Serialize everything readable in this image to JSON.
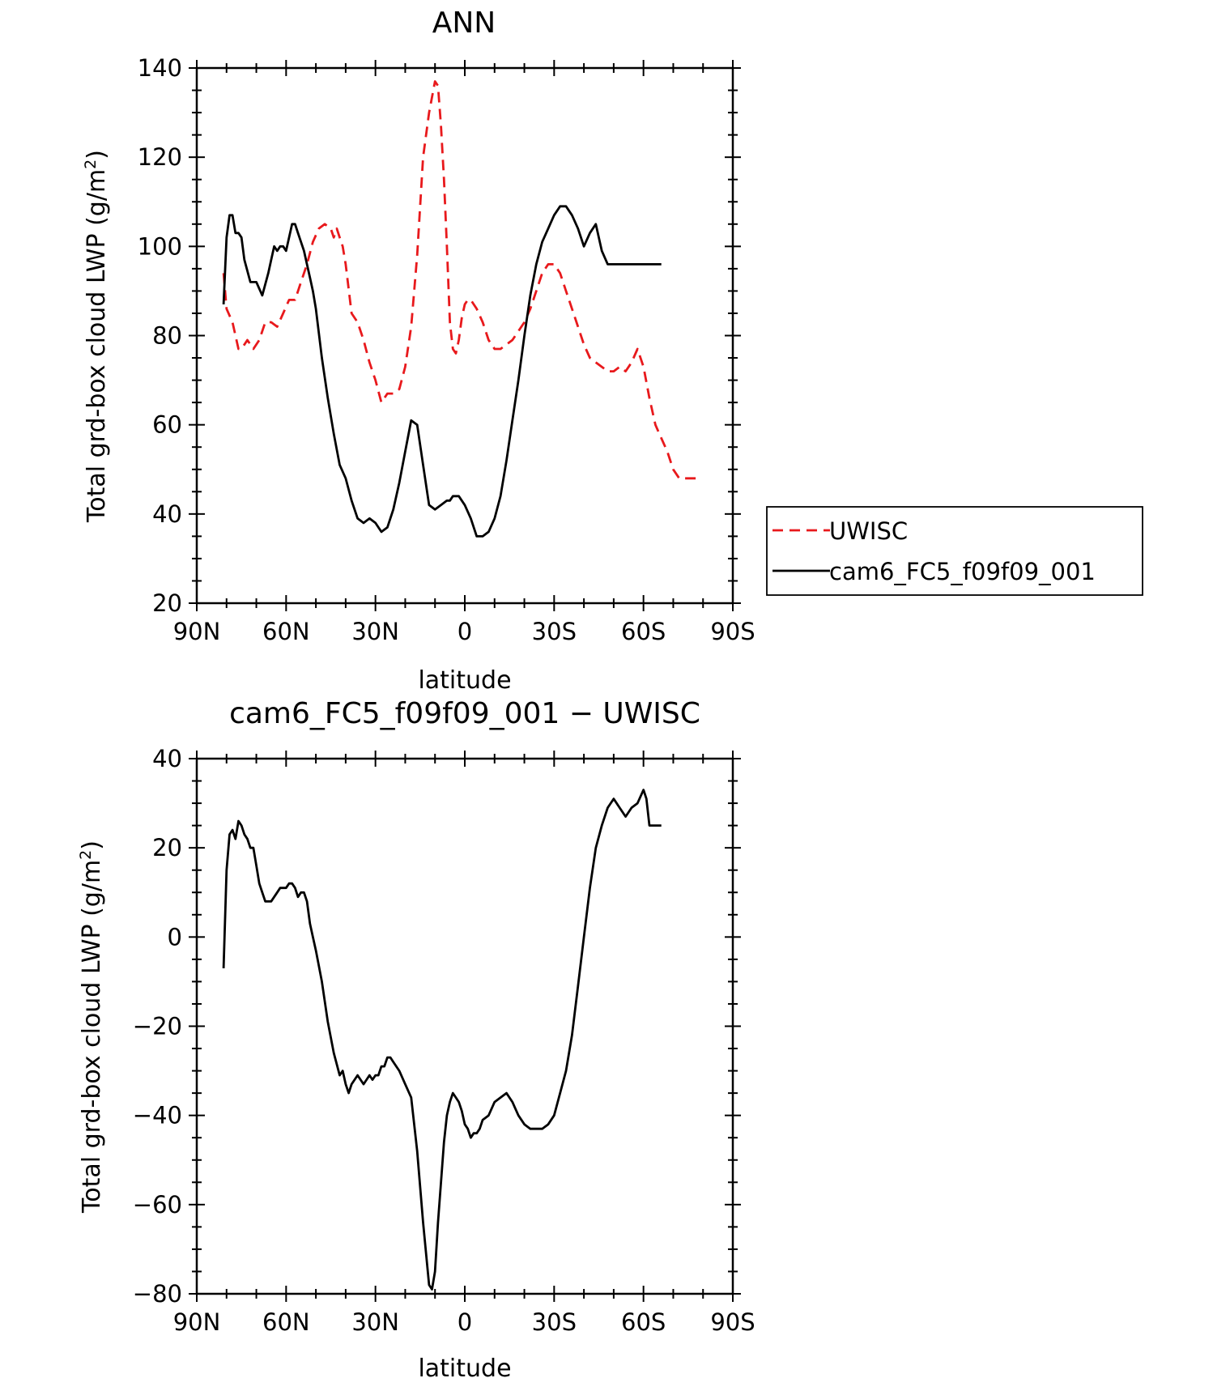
{
  "colors": {
    "uwisc": "#e8191c",
    "model": "#000000",
    "axes": "#000000"
  },
  "chart_data": [
    {
      "type": "line",
      "title": "ANN",
      "xlabel": "latitude",
      "ylabel": "Total grd-box cloud LWP (g/m²)",
      "ylabel_main": "Total grd-box cloud LWP (g/m",
      "ylabel_sup": "2",
      "ylabel_end": ")",
      "xlim": [
        90,
        -90
      ],
      "ylim": [
        20,
        140
      ],
      "x_ticks": [
        {
          "value": 90,
          "label": "90N"
        },
        {
          "value": 60,
          "label": "60N"
        },
        {
          "value": 30,
          "label": "30N"
        },
        {
          "value": 0,
          "label": "0"
        },
        {
          "value": -30,
          "label": "30S"
        },
        {
          "value": -60,
          "label": "60S"
        },
        {
          "value": -90,
          "label": "90S"
        }
      ],
      "y_ticks": [
        20,
        40,
        60,
        80,
        100,
        120,
        140
      ],
      "legend": {
        "position": "right",
        "entries": [
          "UWISC",
          "cam6_FC5_f09f09_001"
        ]
      },
      "series": [
        {
          "name": "UWISC",
          "style": "dashed",
          "color": "#e8191c",
          "x": [
            81,
            80,
            78,
            76,
            75,
            73,
            71,
            69,
            67,
            65,
            63,
            61,
            59,
            57,
            55,
            53,
            51,
            49,
            47,
            45,
            44,
            43,
            42,
            41,
            40,
            38,
            36,
            34,
            32,
            30,
            28,
            26,
            24,
            22,
            20,
            18,
            16,
            14,
            12,
            10,
            9,
            8,
            7,
            6,
            5,
            4,
            3,
            2,
            1,
            0,
            -1,
            -2,
            -4,
            -6,
            -8,
            -10,
            -12,
            -14,
            -16,
            -18,
            -20,
            -22,
            -24,
            -26,
            -28,
            -30,
            -32,
            -34,
            -36,
            -38,
            -40,
            -42,
            -44,
            -46,
            -48,
            -50,
            -52,
            -54,
            -56,
            -58,
            -60,
            -62,
            -64,
            -66,
            -68,
            -70,
            -72,
            -73,
            -74,
            -75,
            -76,
            -77,
            -78
          ],
          "y": [
            94,
            86,
            83,
            77,
            77,
            79,
            77,
            79,
            83,
            83,
            82,
            85,
            88,
            88,
            92,
            96,
            101,
            104,
            105,
            104,
            102,
            104,
            102,
            100,
            96,
            85,
            83,
            79,
            74,
            70,
            65,
            67,
            67,
            68,
            73,
            82,
            98,
            120,
            130,
            137,
            136,
            127,
            115,
            100,
            83,
            77,
            76,
            79,
            84,
            87,
            88,
            88,
            86,
            83,
            79,
            77,
            77,
            78,
            79,
            81,
            83,
            86,
            90,
            94,
            96,
            96,
            94,
            90,
            86,
            82,
            78,
            75,
            74,
            73,
            72,
            72,
            73,
            72,
            74,
            77,
            73,
            66,
            60,
            57,
            54,
            50,
            48,
            48,
            48,
            48,
            48,
            48,
            48
          ]
        },
        {
          "name": "cam6_FC5_f09f09_001",
          "style": "solid",
          "color": "#000000",
          "x": [
            81,
            80,
            79,
            78,
            77,
            76,
            75,
            74,
            72,
            70,
            68,
            66,
            65,
            64,
            63,
            62,
            61,
            60,
            59,
            58,
            57,
            56,
            55,
            54,
            53,
            52,
            51,
            50,
            48,
            46,
            44,
            42,
            40,
            38,
            36,
            34,
            32,
            30,
            28,
            26,
            24,
            22,
            20,
            18,
            16,
            14,
            12,
            10,
            8,
            6,
            5,
            4,
            3,
            2,
            1,
            0,
            -2,
            -4,
            -6,
            -8,
            -10,
            -12,
            -14,
            -16,
            -18,
            -20,
            -22,
            -24,
            -26,
            -28,
            -30,
            -32,
            -34,
            -36,
            -38,
            -40,
            -42,
            -44,
            -46,
            -48,
            -50,
            -52,
            -54,
            -56,
            -58,
            -60,
            -61,
            -62,
            -63,
            -64,
            -65,
            -66
          ],
          "y": [
            87,
            102,
            107,
            107,
            103,
            103,
            102,
            97,
            92,
            92,
            89,
            94,
            97,
            100,
            99,
            100,
            100,
            99,
            102,
            105,
            105,
            103,
            101,
            99,
            96,
            93,
            90,
            86,
            75,
            66,
            58,
            51,
            48,
            43,
            39,
            38,
            39,
            38,
            36,
            37,
            41,
            47,
            54,
            61,
            60,
            51,
            42,
            41,
            42,
            43,
            43,
            44,
            44,
            44,
            43,
            42,
            39,
            35,
            35,
            36,
            39,
            44,
            52,
            61,
            70,
            80,
            89,
            96,
            101,
            104,
            107,
            109,
            109,
            107,
            104,
            100,
            103,
            105,
            99,
            96,
            96,
            96,
            96,
            96,
            96,
            96,
            96,
            96,
            96,
            96,
            96,
            96
          ]
        }
      ]
    },
    {
      "type": "line",
      "title": "cam6_FC5_f09f09_001 − UWISC",
      "xlabel": "latitude",
      "ylabel": "Total grd-box cloud LWP (g/m²)",
      "ylabel_main": "Total grd-box cloud LWP (g/m",
      "ylabel_sup": "2",
      "ylabel_end": ")",
      "xlim": [
        90,
        -90
      ],
      "ylim": [
        -80,
        40
      ],
      "x_ticks": [
        {
          "value": 90,
          "label": "90N"
        },
        {
          "value": 60,
          "label": "60N"
        },
        {
          "value": 30,
          "label": "30N"
        },
        {
          "value": 0,
          "label": "0"
        },
        {
          "value": -30,
          "label": "30S"
        },
        {
          "value": -60,
          "label": "60S"
        },
        {
          "value": -90,
          "label": "90S"
        }
      ],
      "y_ticks": [
        {
          "value": -80,
          "label": "−80"
        },
        {
          "value": -60,
          "label": "−60"
        },
        {
          "value": -40,
          "label": "−40"
        },
        {
          "value": -20,
          "label": "−20"
        },
        {
          "value": 0,
          "label": "0"
        },
        {
          "value": 20,
          "label": "20"
        },
        {
          "value": 40,
          "label": "40"
        }
      ],
      "series": [
        {
          "style": "solid",
          "color": "#000000",
          "x": [
            81,
            80,
            79,
            78,
            77,
            76,
            75,
            74,
            73,
            72,
            71,
            70,
            69,
            68,
            67,
            66,
            65,
            64,
            63,
            62,
            61,
            60,
            59,
            58,
            57,
            56,
            55,
            54,
            53,
            52,
            51,
            50,
            48,
            46,
            44,
            42,
            41,
            40,
            39,
            38,
            36,
            34,
            32,
            31,
            30,
            29,
            28,
            27,
            26,
            25,
            24,
            23,
            22,
            20,
            18,
            16,
            14,
            12,
            11,
            10,
            9,
            8,
            7,
            6,
            5,
            4,
            3,
            2,
            1,
            0,
            -1,
            -2,
            -3,
            -4,
            -5,
            -6,
            -8,
            -10,
            -12,
            -14,
            -16,
            -18,
            -20,
            -22,
            -24,
            -26,
            -28,
            -30,
            -32,
            -34,
            -36,
            -38,
            -40,
            -42,
            -44,
            -46,
            -48,
            -50,
            -52,
            -54,
            -56,
            -58,
            -60,
            -61,
            -62,
            -63,
            -64,
            -65,
            -66
          ],
          "y": [
            -7,
            15,
            23,
            24,
            22,
            26,
            25,
            23,
            22,
            20,
            20,
            16,
            12,
            10,
            8,
            8,
            8,
            9,
            10,
            11,
            11,
            11,
            12,
            12,
            11,
            9,
            10,
            10,
            8,
            3,
            0,
            -3,
            -10,
            -19,
            -26,
            -31,
            -30,
            -33,
            -35,
            -33,
            -31,
            -33,
            -31,
            -32,
            -31,
            -31,
            -29,
            -29,
            -27,
            -27,
            -28,
            -29,
            -30,
            -33,
            -36,
            -48,
            -64,
            -78,
            -79,
            -75,
            -64,
            -55,
            -46,
            -40,
            -37,
            -35,
            -36,
            -37,
            -39,
            -42,
            -43,
            -45,
            -44,
            -44,
            -43,
            -41,
            -40,
            -37,
            -36,
            -35,
            -37,
            -40,
            -42,
            -43,
            -43,
            -43,
            -42,
            -40,
            -35,
            -30,
            -22,
            -11,
            0,
            11,
            20,
            25,
            29,
            31,
            29,
            27,
            29,
            30,
            33,
            31,
            25,
            25,
            25,
            25,
            25
          ]
        }
      ]
    }
  ]
}
